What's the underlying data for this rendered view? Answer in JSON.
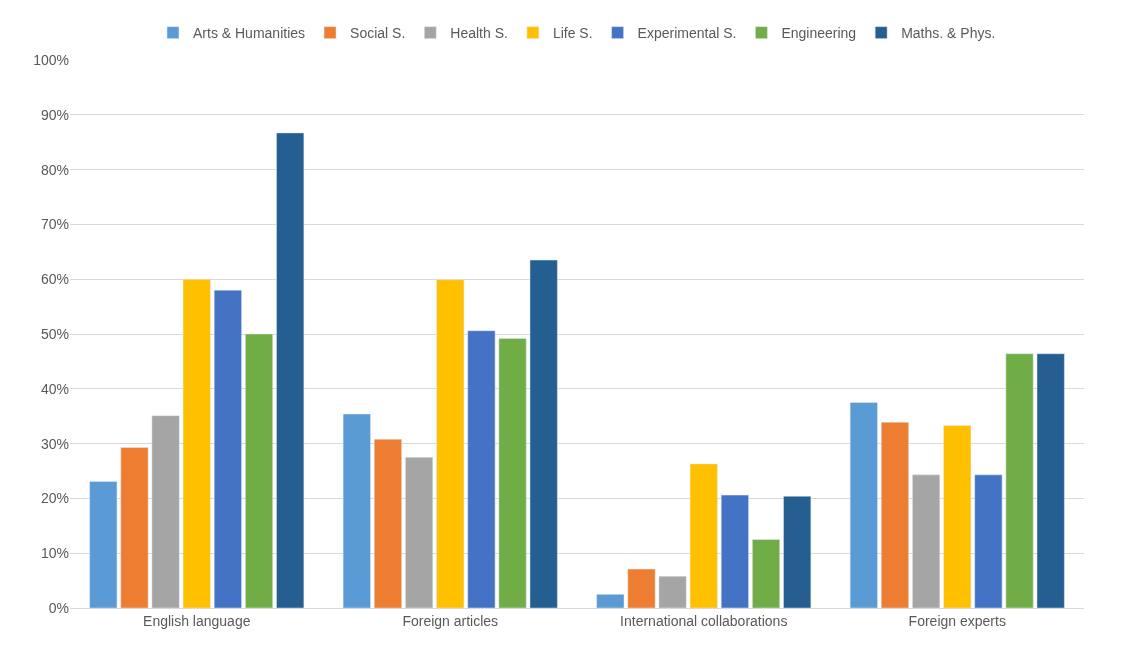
{
  "chart_data": {
    "type": "bar",
    "categories": [
      "English language",
      "Foreign articles",
      "International collaborations",
      "Foreign experts"
    ],
    "series": [
      {
        "name": "Arts & Humanities",
        "color": "#5b9bd5",
        "values": [
          23.1,
          35.4,
          2.5,
          37.5
        ]
      },
      {
        "name": "Social S.",
        "color": "#ed7d31",
        "values": [
          29.3,
          30.8,
          7.1,
          33.9
        ]
      },
      {
        "name": "Health S.",
        "color": "#a5a5a5",
        "values": [
          35.1,
          27.5,
          5.8,
          24.3
        ]
      },
      {
        "name": "Life S.",
        "color": "#ffc000",
        "values": [
          60,
          59.9,
          26.3,
          33.3
        ]
      },
      {
        "name": "Experimental S.",
        "color": "#4472c4",
        "values": [
          58,
          50.6,
          20.6,
          24.3
        ]
      },
      {
        "name": "Engineering",
        "color": "#70ad47",
        "values": [
          50,
          49.2,
          12.5,
          46.4
        ]
      },
      {
        "name": "Maths. & Phys.",
        "color": "#255e91",
        "values": [
          86.7,
          63.5,
          20.4,
          46.4
        ]
      }
    ],
    "ylim": [
      0,
      100
    ],
    "yticks": [
      {
        "value": 0,
        "label": "0%"
      },
      {
        "value": 10,
        "label": "10%"
      },
      {
        "value": 20,
        "label": "20%"
      },
      {
        "value": 30,
        "label": "30%"
      },
      {
        "value": 40,
        "label": "40%"
      },
      {
        "value": 50,
        "label": "50%"
      },
      {
        "value": 60,
        "label": "60%"
      },
      {
        "value": 70,
        "label": "70%"
      },
      {
        "value": 80,
        "label": "80%"
      },
      {
        "value": 90,
        "label": "90%"
      },
      {
        "value": 100,
        "label": "100%"
      }
    ],
    "grid": "y",
    "legend": "top"
  }
}
